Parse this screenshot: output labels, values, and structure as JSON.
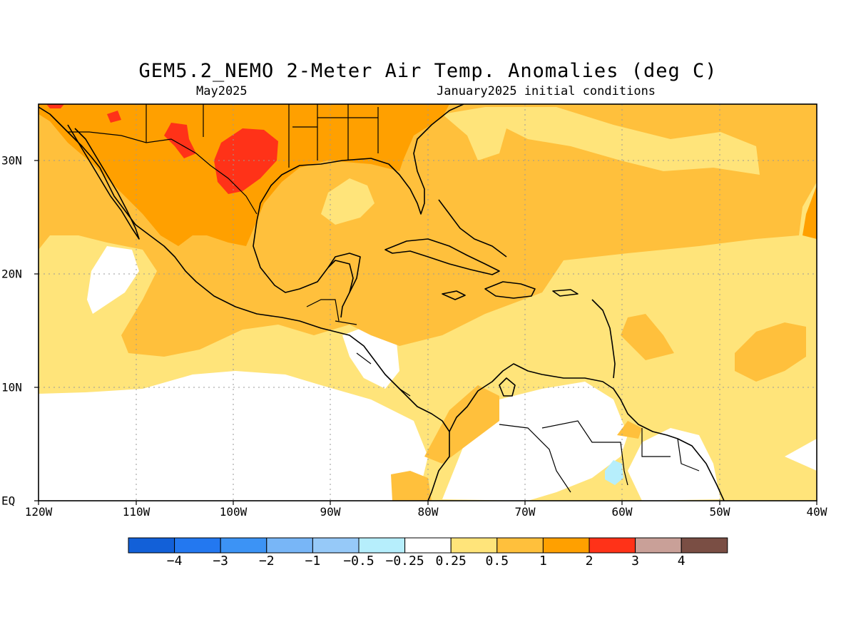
{
  "title": "GEM5.2_NEMO 2-Meter Air Temp. Anomalies (deg C)",
  "valid_month": "May2025",
  "initial_conditions": "January2025 initial conditions",
  "axes": {
    "x_ticks": [
      "120W",
      "110W",
      "100W",
      "90W",
      "80W",
      "70W",
      "60W",
      "50W",
      "40W"
    ],
    "y_ticks": [
      "EQ",
      "10N",
      "20N",
      "30N"
    ]
  },
  "colorbar": {
    "colors": [
      "#1260d8",
      "#2378f0",
      "#3c93f5",
      "#78b6f7",
      "#96c9f8",
      "#b6eefc",
      "#ffffff",
      "#ffe47a",
      "#ffc03c",
      "#ffa000",
      "#ff3218",
      "#c9a098",
      "#7a4e44"
    ],
    "labels": [
      "−4",
      "−3",
      "−2",
      "−1",
      "−0.5",
      "−0.25",
      "0.25",
      "0.5",
      "1",
      "2",
      "3",
      "4"
    ]
  },
  "legend_colors": {
    "land_outline": "#000000",
    "grid": "#999999"
  }
}
